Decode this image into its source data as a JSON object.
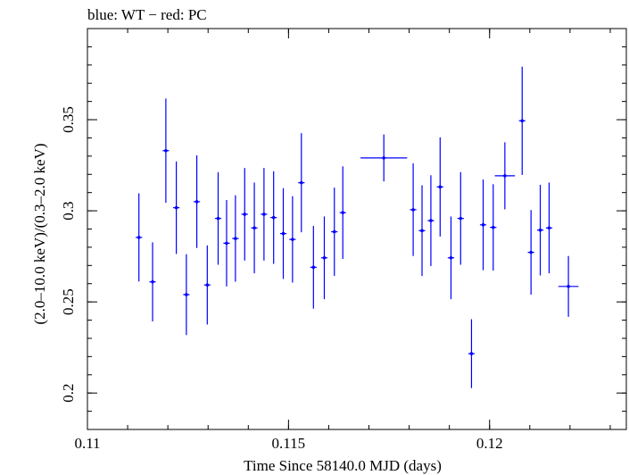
{
  "chart_data": {
    "type": "scatter",
    "title": "blue: WT − red: PC",
    "xlabel": "Time Since 58140.0 MJD (days)",
    "ylabel": "(2.0–10.0 keV)/(0.3–2.0 keV)",
    "xlim": [
      0.11,
      0.1234
    ],
    "ylim": [
      0.18,
      0.4
    ],
    "x_ticks": [
      {
        "value": 0.11,
        "label": "0.11"
      },
      {
        "value": 0.115,
        "label": "0.115"
      },
      {
        "value": 0.12,
        "label": "0.12"
      }
    ],
    "y_ticks": [
      {
        "value": 0.2,
        "label": "0.2"
      },
      {
        "value": 0.25,
        "label": "0.25"
      },
      {
        "value": 0.3,
        "label": "0.3"
      },
      {
        "value": 0.35,
        "label": "0.35"
      }
    ],
    "x_minor_step": 0.001,
    "y_minor_step": 0.01,
    "series": [
      {
        "name": "WT",
        "color": "#0000ff",
        "points": [
          {
            "x": 0.11128,
            "xerr": 8e-05,
            "y": 0.2854,
            "yerr": 0.0242
          },
          {
            "x": 0.11162,
            "xerr": 8e-05,
            "y": 0.261,
            "yerr": 0.0217
          },
          {
            "x": 0.11195,
            "xerr": 8e-05,
            "y": 0.333,
            "yerr": 0.0286
          },
          {
            "x": 0.11221,
            "xerr": 8e-05,
            "y": 0.3017,
            "yerr": 0.0254
          },
          {
            "x": 0.11246,
            "xerr": 8e-05,
            "y": 0.254,
            "yerr": 0.0222
          },
          {
            "x": 0.11272,
            "xerr": 8e-05,
            "y": 0.305,
            "yerr": 0.0254
          },
          {
            "x": 0.11298,
            "xerr": 8e-05,
            "y": 0.2593,
            "yerr": 0.0217
          },
          {
            "x": 0.11325,
            "xerr": 8e-05,
            "y": 0.2958,
            "yerr": 0.0254
          },
          {
            "x": 0.11346,
            "xerr": 8e-05,
            "y": 0.2822,
            "yerr": 0.0237
          },
          {
            "x": 0.11368,
            "xerr": 8e-05,
            "y": 0.2848,
            "yerr": 0.0237
          },
          {
            "x": 0.11391,
            "xerr": 8e-05,
            "y": 0.2981,
            "yerr": 0.0254
          },
          {
            "x": 0.11415,
            "xerr": 8e-05,
            "y": 0.2906,
            "yerr": 0.0249
          },
          {
            "x": 0.11439,
            "xerr": 8e-05,
            "y": 0.2981,
            "yerr": 0.0254
          },
          {
            "x": 0.11463,
            "xerr": 8e-05,
            "y": 0.2963,
            "yerr": 0.0254
          },
          {
            "x": 0.11487,
            "xerr": 8e-05,
            "y": 0.2875,
            "yerr": 0.0249
          },
          {
            "x": 0.1151,
            "xerr": 8e-05,
            "y": 0.2843,
            "yerr": 0.0237
          },
          {
            "x": 0.11532,
            "xerr": 8e-05,
            "y": 0.3154,
            "yerr": 0.0272
          },
          {
            "x": 0.11562,
            "xerr": 8e-05,
            "y": 0.269,
            "yerr": 0.0227
          },
          {
            "x": 0.11589,
            "xerr": 8e-05,
            "y": 0.2742,
            "yerr": 0.0227
          },
          {
            "x": 0.11614,
            "xerr": 8e-05,
            "y": 0.2885,
            "yerr": 0.0242
          },
          {
            "x": 0.11635,
            "xerr": 8e-05,
            "y": 0.299,
            "yerr": 0.0254
          },
          {
            "x": 0.11737,
            "xerr": 0.00058,
            "y": 0.329,
            "yerr": 0.0129
          },
          {
            "x": 0.1181,
            "xerr": 8e-05,
            "y": 0.3006,
            "yerr": 0.0254
          },
          {
            "x": 0.11832,
            "xerr": 8e-05,
            "y": 0.2891,
            "yerr": 0.0249
          },
          {
            "x": 0.11854,
            "xerr": 8e-05,
            "y": 0.2946,
            "yerr": 0.0249
          },
          {
            "x": 0.11877,
            "xerr": 8e-05,
            "y": 0.3131,
            "yerr": 0.0272
          },
          {
            "x": 0.11904,
            "xerr": 8e-05,
            "y": 0.2742,
            "yerr": 0.0227
          },
          {
            "x": 0.11928,
            "xerr": 8e-05,
            "y": 0.2958,
            "yerr": 0.0254
          },
          {
            "x": 0.11955,
            "xerr": 8e-05,
            "y": 0.2216,
            "yerr": 0.0189
          },
          {
            "x": 0.11984,
            "xerr": 8e-05,
            "y": 0.2923,
            "yerr": 0.0249
          },
          {
            "x": 0.12009,
            "xerr": 8e-05,
            "y": 0.2909,
            "yerr": 0.0237
          },
          {
            "x": 0.12038,
            "xerr": 0.00025,
            "y": 0.3192,
            "yerr": 0.0184
          },
          {
            "x": 0.12081,
            "xerr": 8e-05,
            "y": 0.3494,
            "yerr": 0.0297
          },
          {
            "x": 0.12103,
            "xerr": 8e-05,
            "y": 0.2772,
            "yerr": 0.0232
          },
          {
            "x": 0.12126,
            "xerr": 8e-05,
            "y": 0.2894,
            "yerr": 0.0249
          },
          {
            "x": 0.12148,
            "xerr": 8e-05,
            "y": 0.2906,
            "yerr": 0.0249
          },
          {
            "x": 0.12196,
            "xerr": 0.00025,
            "y": 0.2585,
            "yerr": 0.0167
          }
        ]
      }
    ]
  }
}
